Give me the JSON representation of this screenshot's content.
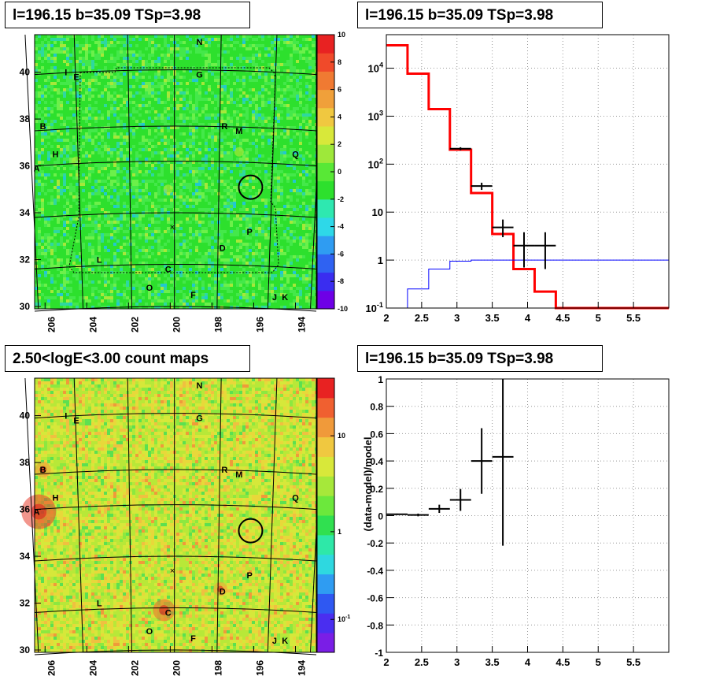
{
  "panels": {
    "tl_title": "l=196.15 b=35.09 TSp=3.98",
    "tr_title": "l=196.15 b=35.09 TSp=3.98",
    "bl_title": "2.50<logE<3.00 count maps",
    "br_title": "l=196.15 b=35.09 TSp=3.98"
  },
  "chart_data": [
    {
      "type": "heatmap",
      "title": "l=196.15 b=35.09 TSp=3.98",
      "xlim": [
        206.5,
        193.0
      ],
      "ylim": [
        29.9,
        41.6
      ],
      "x_ticks": [
        "206",
        "204",
        "202",
        "200",
        "198",
        "196",
        "194"
      ],
      "y_ticks": [
        "30",
        "32",
        "34",
        "36",
        "38",
        "40"
      ],
      "colorbar": {
        "min": -10,
        "max": 10,
        "ticks": [
          "10",
          "8",
          "6",
          "4",
          "2",
          "0",
          "-2",
          "-4",
          "-6",
          "-8",
          "-10"
        ]
      },
      "sources": [
        {
          "label": "N",
          "x": 198.6,
          "y": 41.3
        },
        {
          "label": "I",
          "x": 205.0,
          "y": 40.0
        },
        {
          "label": "E",
          "x": 204.5,
          "y": 39.8
        },
        {
          "label": "G",
          "x": 198.6,
          "y": 39.9
        },
        {
          "label": "B",
          "x": 206.1,
          "y": 37.7
        },
        {
          "label": "R",
          "x": 197.4,
          "y": 37.7
        },
        {
          "label": "M",
          "x": 196.7,
          "y": 37.5
        },
        {
          "label": "H",
          "x": 205.5,
          "y": 36.5
        },
        {
          "label": "Q",
          "x": 194.0,
          "y": 36.5
        },
        {
          "label": "A",
          "x": 206.4,
          "y": 35.9
        },
        {
          "label": "P",
          "x": 196.2,
          "y": 33.2
        },
        {
          "label": "D",
          "x": 197.5,
          "y": 32.5
        },
        {
          "label": "L",
          "x": 203.4,
          "y": 32.0
        },
        {
          "label": "C",
          "x": 200.1,
          "y": 31.6
        },
        {
          "label": "O",
          "x": 201.0,
          "y": 30.8
        },
        {
          "label": "F",
          "x": 198.9,
          "y": 30.5
        },
        {
          "label": "J",
          "x": 195.0,
          "y": 30.4
        },
        {
          "label": "K",
          "x": 194.5,
          "y": 30.4
        }
      ],
      "target_circle": {
        "x": 196.15,
        "y": 35.09
      },
      "cross_marker": {
        "x": 199.9,
        "y": 33.4
      }
    },
    {
      "type": "line",
      "title": "l=196.15 b=35.09 TSp=3.98",
      "xlim": [
        2,
        6
      ],
      "ylim": [
        0.1,
        50000
      ],
      "log_y": true,
      "grid": true,
      "x_ticks": [
        "2",
        "2.5",
        "3",
        "3.5",
        "4",
        "4.5",
        "5",
        "5.5"
      ],
      "y_ticks": [
        "10^-1",
        "1",
        "10",
        "10^2",
        "10^3",
        "10^4"
      ],
      "series": [
        {
          "color": "#ff0000",
          "type": "step",
          "edges": [
            2.0,
            2.3,
            2.6,
            2.9,
            3.2,
            3.5,
            3.8,
            4.1,
            4.4,
            4.7,
            5.0,
            5.3,
            5.6,
            6.0
          ],
          "values": [
            30000,
            7700,
            1400,
            200,
            25,
            3.5,
            0.65,
            0.22,
            0.1,
            0.1,
            0.1,
            0.1,
            0.1
          ]
        },
        {
          "color": "#0000ff",
          "type": "step",
          "edges": [
            2.0,
            2.3,
            2.6,
            2.9,
            3.2,
            6.0
          ],
          "values": [
            0.1,
            0.25,
            0.65,
            0.95,
            1.0
          ]
        },
        {
          "color": "#000000",
          "type": "errorbars",
          "points": [
            {
              "x": 3.05,
              "y": 210,
              "xerr": 0.15,
              "ylo": 195,
              "yhi": 225
            },
            {
              "x": 3.35,
              "y": 35,
              "xerr": 0.15,
              "ylo": 29,
              "yhi": 41
            },
            {
              "x": 3.65,
              "y": 4.8,
              "xerr": 0.15,
              "ylo": 3.0,
              "yhi": 7.0
            },
            {
              "x": 3.95,
              "y": 2.0,
              "xerr": 0.15,
              "ylo": 0.7,
              "yhi": 3.8
            },
            {
              "x": 4.25,
              "y": 2.0,
              "xerr": 0.15,
              "ylo": 0.65,
              "yhi": 3.8
            }
          ]
        }
      ]
    },
    {
      "type": "heatmap",
      "title": "2.50<logE<3.00 count maps",
      "xlim": [
        206.5,
        193.0
      ],
      "ylim": [
        29.9,
        41.6
      ],
      "x_ticks": [
        "206",
        "204",
        "202",
        "200",
        "198",
        "196",
        "194"
      ],
      "y_ticks": [
        "30",
        "32",
        "34",
        "36",
        "38",
        "40"
      ],
      "colorbar": {
        "log": true,
        "ticks": [
          "10",
          "1",
          "10^-1"
        ]
      },
      "sources": [
        {
          "label": "N",
          "x": 198.6,
          "y": 41.3
        },
        {
          "label": "I",
          "x": 205.0,
          "y": 40.0
        },
        {
          "label": "E",
          "x": 204.5,
          "y": 39.8
        },
        {
          "label": "G",
          "x": 198.6,
          "y": 39.9
        },
        {
          "label": "B",
          "x": 206.1,
          "y": 37.7
        },
        {
          "label": "R",
          "x": 197.4,
          "y": 37.7
        },
        {
          "label": "M",
          "x": 196.7,
          "y": 37.5
        },
        {
          "label": "H",
          "x": 205.5,
          "y": 36.5
        },
        {
          "label": "Q",
          "x": 194.0,
          "y": 36.5
        },
        {
          "label": "A",
          "x": 206.4,
          "y": 35.9
        },
        {
          "label": "P",
          "x": 196.2,
          "y": 33.2
        },
        {
          "label": "D",
          "x": 197.5,
          "y": 32.5
        },
        {
          "label": "L",
          "x": 203.4,
          "y": 32.0
        },
        {
          "label": "C",
          "x": 200.1,
          "y": 31.6
        },
        {
          "label": "O",
          "x": 201.0,
          "y": 30.8
        },
        {
          "label": "F",
          "x": 198.9,
          "y": 30.5
        },
        {
          "label": "J",
          "x": 195.0,
          "y": 30.4
        },
        {
          "label": "K",
          "x": 194.5,
          "y": 30.4
        }
      ],
      "target_circle": {
        "x": 196.15,
        "y": 35.09
      },
      "cross_marker": {
        "x": 199.9,
        "y": 33.4
      }
    },
    {
      "type": "scatter",
      "title": "l=196.15 b=35.09 TSp=3.98",
      "xlim": [
        2,
        6
      ],
      "ylim": [
        -1,
        1
      ],
      "grid": true,
      "ylabel": "(data-model)/model",
      "x_ticks": [
        "2",
        "2.5",
        "3",
        "3.5",
        "4",
        "4.5",
        "5",
        "5.5"
      ],
      "y_ticks": [
        "-1",
        "-0.8",
        "-0.6",
        "-0.4",
        "-0.2",
        "0",
        "0.2",
        "0.4",
        "0.6",
        "0.8",
        "1"
      ],
      "points": [
        {
          "x": 2.15,
          "y": 0.01,
          "xerr": 0.15,
          "err": 0.005
        },
        {
          "x": 2.45,
          "y": 0.005,
          "xerr": 0.15,
          "err": 0.01
        },
        {
          "x": 2.75,
          "y": 0.05,
          "xerr": 0.15,
          "err": 0.03
        },
        {
          "x": 3.05,
          "y": 0.115,
          "xerr": 0.15,
          "err": 0.08
        },
        {
          "x": 3.35,
          "y": 0.4,
          "xerr": 0.15,
          "err": 0.24
        },
        {
          "x": 3.65,
          "y": 0.43,
          "xerr": 0.15,
          "err": 0.65
        }
      ]
    }
  ]
}
